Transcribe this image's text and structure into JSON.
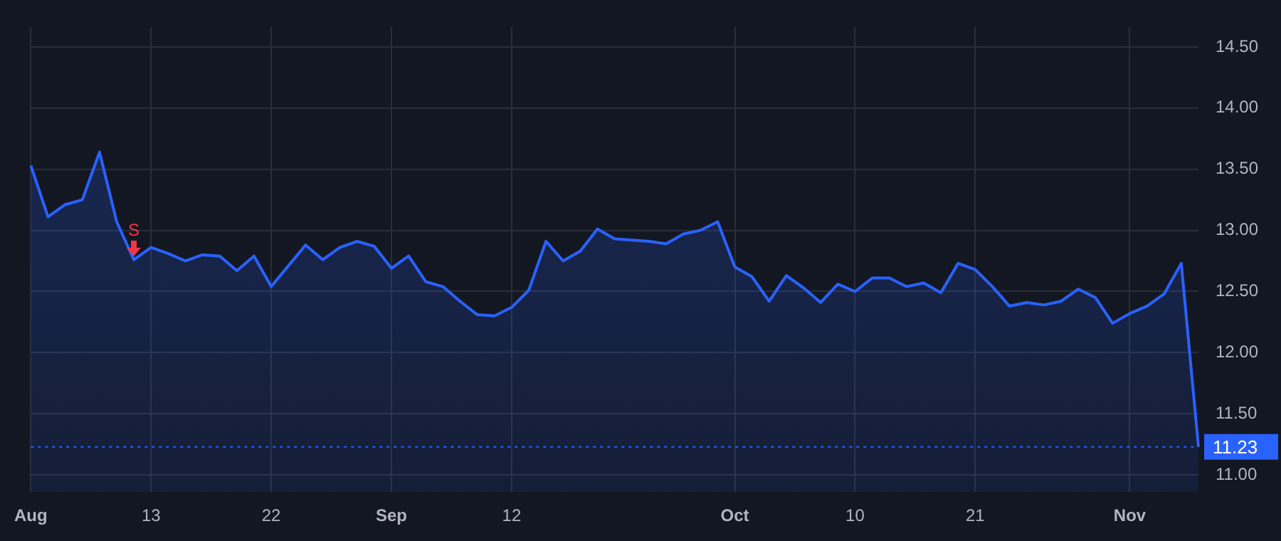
{
  "chart_data": {
    "type": "area",
    "categories": [
      "Aug",
      null,
      null,
      null,
      null,
      null,
      null,
      "13",
      null,
      null,
      null,
      null,
      null,
      null,
      "22",
      null,
      null,
      null,
      null,
      null,
      null,
      "Sep",
      null,
      null,
      null,
      null,
      null,
      null,
      "12",
      null,
      null,
      null,
      null,
      null,
      null,
      null,
      null,
      null,
      null,
      null,
      null,
      "Oct",
      null,
      null,
      null,
      null,
      null,
      null,
      "10",
      null,
      null,
      null,
      null,
      null,
      null,
      "21",
      null,
      null,
      null,
      null,
      null,
      null,
      null,
      null,
      "Nov",
      null,
      null,
      null,
      null
    ],
    "series": [
      {
        "color": "#2962ff",
        "values": [
          13.53,
          13.11,
          13.21,
          13.25,
          13.64,
          13.07,
          12.76,
          12.86,
          12.81,
          12.75,
          12.8,
          12.79,
          12.67,
          12.79,
          12.54,
          12.71,
          12.88,
          12.76,
          12.86,
          12.91,
          12.87,
          12.69,
          12.79,
          12.58,
          12.54,
          12.42,
          12.31,
          12.3,
          12.37,
          12.51,
          12.91,
          12.75,
          12.83,
          13.01,
          12.93,
          12.92,
          12.91,
          12.89,
          12.97,
          13.0,
          13.07,
          12.7,
          12.62,
          12.42,
          12.63,
          12.53,
          12.41,
          12.56,
          12.5,
          12.61,
          12.61,
          12.54,
          12.57,
          12.49,
          12.73,
          12.68,
          12.54,
          12.38,
          12.41,
          12.39,
          12.42,
          12.52,
          12.45,
          12.24,
          12.32,
          12.38,
          12.48,
          12.73,
          11.23
        ]
      }
    ],
    "ylim": [
      10.86,
      14.66
    ],
    "yticks": [
      {
        "value": 11,
        "label": "11.00"
      },
      {
        "value": 11.5,
        "label": "11.50"
      },
      {
        "value": 12,
        "label": "12.00"
      },
      {
        "value": 12.5,
        "label": "12.50"
      },
      {
        "value": 13,
        "label": "13.00"
      },
      {
        "value": 13.5,
        "label": "13.50"
      },
      {
        "value": 14,
        "label": "14.00"
      },
      {
        "value": 14.5,
        "label": "14.50"
      }
    ],
    "grid": true,
    "ref_lines": [
      {
        "axis": "y",
        "value": 11.23,
        "label": "11.23",
        "color": "#2962ff",
        "line_style": "dotted"
      }
    ],
    "annotations": [
      {
        "text": "S",
        "y": 12.76
      }
    ]
  }
}
